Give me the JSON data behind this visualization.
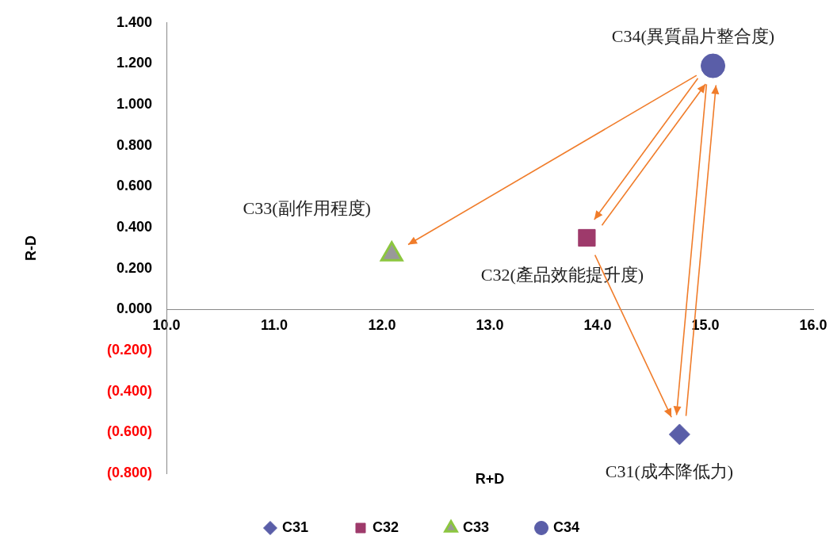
{
  "chart_data": {
    "type": "scatter",
    "xlabel": "R+D",
    "ylabel": "R-D",
    "xlim": [
      10,
      16
    ],
    "xticks": [
      {
        "value": 10,
        "label": "10.0"
      },
      {
        "value": 11,
        "label": "11.0"
      },
      {
        "value": 12,
        "label": "12.0"
      },
      {
        "value": 13,
        "label": "13.0"
      },
      {
        "value": 14,
        "label": "14.0"
      },
      {
        "value": 15,
        "label": "15.0"
      },
      {
        "value": 16,
        "label": "16.0"
      }
    ],
    "ylim": [
      -0.8,
      1.4
    ],
    "yticks": [
      {
        "value": -0.8,
        "label": "(0.800)"
      },
      {
        "value": -0.6,
        "label": "(0.600)"
      },
      {
        "value": -0.4,
        "label": "(0.400)"
      },
      {
        "value": -0.2,
        "label": "(0.200)"
      },
      {
        "value": 0,
        "label": "0.000"
      },
      {
        "value": 0.2,
        "label": "0.200"
      },
      {
        "value": 0.4,
        "label": "0.400"
      },
      {
        "value": 0.6,
        "label": "0.600"
      },
      {
        "value": 0.8,
        "label": "0.800"
      },
      {
        "value": 1.0,
        "label": "1.000"
      },
      {
        "value": 1.2,
        "label": "1.200"
      },
      {
        "value": 1.4,
        "label": "1.400"
      }
    ],
    "series": [
      {
        "name": "C31",
        "color": "#5a5ea8",
        "marker": "diamond",
        "x": [
          14.76
        ],
        "values": [
          -0.61
        ]
      },
      {
        "name": "C32",
        "color": "#9e3a6b",
        "marker": "square",
        "x": [
          13.9
        ],
        "values": [
          0.35
        ]
      },
      {
        "name": "C33",
        "color": "#999999",
        "marker": "triangle",
        "x": [
          12.09
        ],
        "values": [
          0.27
        ]
      },
      {
        "name": "C34",
        "color": "#5a5ea8",
        "marker": "circle",
        "x": [
          15.07
        ],
        "values": [
          1.19
        ]
      }
    ],
    "annotations": [
      {
        "text": "C31(成本降低力)",
        "x": 14.76,
        "y": -0.61
      },
      {
        "text": "C32(產品效能提升度)",
        "x": 13.9,
        "y": 0.35
      },
      {
        "text": "C33(副作用程度)",
        "x": 12.09,
        "y": 0.27
      },
      {
        "text": "C34(異質晶片整合度)",
        "x": 15.07,
        "y": 1.19
      }
    ],
    "legend": "bottom",
    "grid": false
  }
}
